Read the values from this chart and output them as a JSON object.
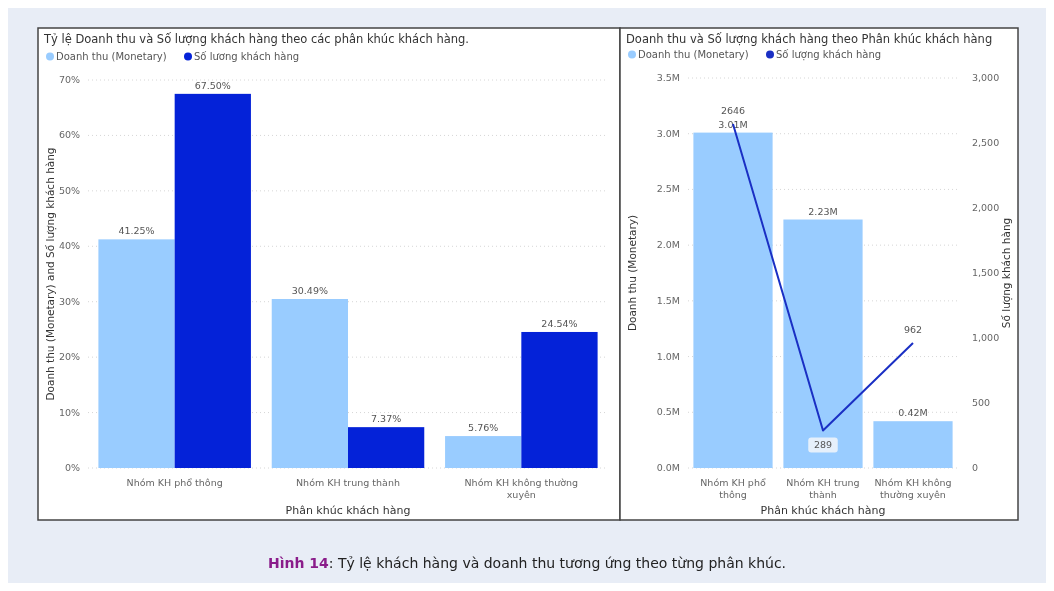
{
  "chart_data": [
    {
      "type": "bar",
      "title": "Tỷ lệ Doanh thu và Số lượng khách hàng theo các phân khúc khách hàng.",
      "xlabel": "Phân khúc khách hàng",
      "ylabel": "Doanh thu (Monetary) and Số lượng khách hàng",
      "categories": [
        "Nhóm KH phổ thông",
        "Nhóm KH trung thành",
        "Nhóm KH không thường xuyên"
      ],
      "series": [
        {
          "name": "Doanh thu (Monetary)",
          "color": "#99ccff",
          "values": [
            41.25,
            30.49,
            5.76
          ],
          "value_labels": [
            "41.25%",
            "30.49%",
            "5.76%"
          ]
        },
        {
          "name": "Số lương khách hàng",
          "color": "#0422d8",
          "values": [
            67.5,
            7.37,
            24.54
          ],
          "value_labels": [
            "67.50%",
            "7.37%",
            "24.54%"
          ]
        }
      ],
      "ylim": [
        0,
        70
      ],
      "yticks": [
        {
          "value": 0,
          "label": "0%"
        },
        {
          "value": 10,
          "label": "10%"
        },
        {
          "value": 20,
          "label": "20%"
        },
        {
          "value": 30,
          "label": "30%"
        },
        {
          "value": 40,
          "label": "40%"
        },
        {
          "value": 50,
          "label": "50%"
        },
        {
          "value": 60,
          "label": "60%"
        },
        {
          "value": 70,
          "label": "70%"
        }
      ],
      "grid": "y",
      "legend": "top left"
    },
    {
      "type": "bar",
      "title": "Doanh thu và Số lượng khách hàng theo Phân khúc khách hàng",
      "xlabel": "Phân khúc khách hàng",
      "ylabel": "Doanh thu (Monetary)",
      "y2label": "Số lượng khách hàng",
      "categories": [
        "Nhóm KH phổ thông",
        "Nhóm KH trung thành",
        "Nhóm KH không thường xuyên"
      ],
      "series": [
        {
          "name": "Doanh thu (Monetary)",
          "color": "#99ccff",
          "values": [
            3010000,
            2230000,
            420000
          ],
          "value_labels": [
            "3.01M",
            "2.23M",
            "0.42M"
          ]
        },
        {
          "name": "Số lượng khách hàng",
          "type": "line",
          "axis": "y2",
          "color": "#1a2fc4",
          "values": [
            2646,
            289,
            962
          ],
          "value_labels": [
            "2646",
            "289",
            "962"
          ]
        }
      ],
      "ylim": [
        0,
        3500000
      ],
      "yticks": [
        {
          "value": 0,
          "label": "0.0M"
        },
        {
          "value": 500000,
          "label": "0.5M"
        },
        {
          "value": 1000000,
          "label": "1.0M"
        },
        {
          "value": 1500000,
          "label": "1.5M"
        },
        {
          "value": 2000000,
          "label": "2.0M"
        },
        {
          "value": 2500000,
          "label": "2.5M"
        },
        {
          "value": 3000000,
          "label": "3.0M"
        },
        {
          "value": 3500000,
          "label": "3.5M"
        }
      ],
      "y2lim": [
        0,
        3000
      ],
      "y2ticks": [
        0,
        500,
        {
          "value": 1000,
          "label": "1,000"
        },
        {
          "value": 1500,
          "label": "1,500"
        },
        {
          "value": 2000,
          "label": "2,000"
        },
        {
          "value": 2500,
          "label": "2,500"
        },
        {
          "value": 3000,
          "label": "3,000"
        }
      ],
      "grid": "y",
      "legend": "top left",
      "annotations": [
        "Hình 14: Tỷ lệ khách hàng và doanh thu tương ứng theo từng phân khúc."
      ]
    }
  ]
}
